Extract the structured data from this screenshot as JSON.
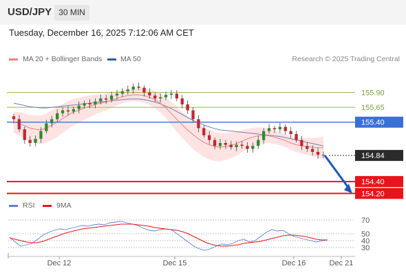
{
  "header": {
    "symbol": "USD/JPY",
    "timeframe": "30 MIN",
    "datetime": "Tuesday, December 16, 2025 7:12:06 AM CET"
  },
  "legend": {
    "ma20_bb": {
      "label": "MA 20 + Bollinger Bands",
      "color": "#f08080"
    },
    "ma50": {
      "label": "MA 50",
      "color": "#2c5aa0"
    },
    "research": "Research © 2025 Trading Central"
  },
  "chart_data": [
    {
      "type": "candlestick",
      "title": "USD/JPY",
      "x_ticks": [
        "Dec 12",
        "Dec 15",
        "Dec 16",
        "Dec 21"
      ],
      "ylim": [
        154.1,
        156.3
      ],
      "levels": [
        {
          "label": "155.90",
          "value": 155.9,
          "color": "#8fbc5a",
          "style": "thin"
        },
        {
          "label": "155.65",
          "value": 155.65,
          "color": "#8fbc5a",
          "style": "thin"
        },
        {
          "label": "155.40",
          "value": 155.4,
          "color": "#3b6fd8",
          "style": "medium"
        },
        {
          "label": "154.84",
          "value": 154.84,
          "color": "#333333",
          "style": "dotted",
          "current": true
        },
        {
          "label": "154.40",
          "value": 154.4,
          "color": "#e8141b",
          "style": "thick"
        },
        {
          "label": "154.20",
          "value": 154.2,
          "color": "#e8141b",
          "style": "thick"
        }
      ],
      "close_series": [
        155.45,
        155.28,
        155.1,
        155.05,
        155.12,
        155.25,
        155.38,
        155.45,
        155.55,
        155.6,
        155.58,
        155.62,
        155.68,
        155.72,
        155.7,
        155.75,
        155.8,
        155.78,
        155.85,
        155.88,
        155.92,
        155.95,
        156.0,
        155.98,
        155.9,
        155.85,
        155.8,
        155.82,
        155.86,
        155.88,
        155.8,
        155.7,
        155.6,
        155.45,
        155.3,
        155.18,
        155.1,
        155.0,
        155.05,
        155.02,
        154.98,
        155.02,
        155.0,
        154.95,
        155.0,
        155.1,
        155.25,
        155.3,
        155.28,
        155.32,
        155.25,
        155.2,
        155.1,
        155.0,
        154.95,
        154.9,
        154.85,
        154.84
      ],
      "ma20_series": [
        155.4,
        155.38,
        155.34,
        155.3,
        155.28,
        155.27,
        155.3,
        155.35,
        155.4,
        155.46,
        155.52,
        155.57,
        155.6,
        155.64,
        155.67,
        155.7,
        155.72,
        155.74,
        155.77,
        155.8,
        155.83,
        155.85,
        155.86,
        155.86,
        155.85,
        155.82,
        155.78,
        155.72,
        155.64,
        155.55,
        155.45,
        155.36,
        155.27,
        155.19,
        155.12,
        155.06,
        155.02,
        154.99,
        154.98,
        154.99,
        155.01,
        155.04,
        155.08,
        155.12,
        155.15,
        155.17,
        155.18,
        155.17,
        155.15,
        155.12,
        155.09,
        155.05,
        155.02,
        155.0,
        154.99,
        154.98,
        154.97,
        154.97
      ],
      "ma50_series": [
        155.72,
        155.7,
        155.68,
        155.66,
        155.65,
        155.64,
        155.64,
        155.65,
        155.66,
        155.67,
        155.68,
        155.69,
        155.7,
        155.71,
        155.72,
        155.73,
        155.74,
        155.75,
        155.76,
        155.77,
        155.78,
        155.79,
        155.79,
        155.79,
        155.78,
        155.76,
        155.74,
        155.71,
        155.67,
        155.63,
        155.58,
        155.53,
        155.48,
        155.43,
        155.39,
        155.35,
        155.32,
        155.29,
        155.27,
        155.26,
        155.25,
        155.24,
        155.23,
        155.22,
        155.21,
        155.2,
        155.19,
        155.18,
        155.17,
        155.16,
        155.14,
        155.12,
        155.1,
        155.08,
        155.06,
        155.04,
        155.02,
        155.0
      ],
      "legend": [
        "MA 20 + Bollinger Bands",
        "MA 50"
      ]
    },
    {
      "type": "line",
      "title": "RSI",
      "x_ticks": [
        "Dec 12",
        "Dec 15",
        "Dec 16",
        "Dec 21"
      ],
      "ylim": [
        22,
        78
      ],
      "y_ticks": [
        70,
        50,
        40,
        30
      ],
      "series": [
        {
          "name": "RSI",
          "color": "#5b7fd6",
          "values": [
            45,
            38,
            32,
            34,
            36,
            42,
            48,
            52,
            55,
            57,
            56,
            58,
            60,
            62,
            61,
            63,
            64,
            63,
            66,
            67,
            68,
            66,
            64,
            62,
            58,
            55,
            54,
            56,
            57,
            56,
            50,
            44,
            38,
            32,
            28,
            26,
            28,
            32,
            35,
            34,
            36,
            40,
            42,
            38,
            40,
            46,
            52,
            56,
            54,
            55,
            50,
            46,
            44,
            42,
            40,
            38,
            40,
            41
          ]
        },
        {
          "name": "9MA",
          "color": "#e8141b",
          "values": [
            44,
            42,
            40,
            38,
            37,
            37,
            39,
            42,
            45,
            48,
            51,
            53,
            55,
            57,
            58,
            59,
            60,
            61,
            62,
            63,
            64,
            64,
            64,
            63,
            62,
            61,
            59,
            58,
            57,
            56,
            55,
            53,
            50,
            46,
            42,
            38,
            35,
            33,
            32,
            32,
            33,
            34,
            36,
            37,
            38,
            39,
            41,
            43,
            45,
            47,
            48,
            48,
            47,
            46,
            44,
            42,
            41,
            41
          ]
        }
      ]
    }
  ]
}
